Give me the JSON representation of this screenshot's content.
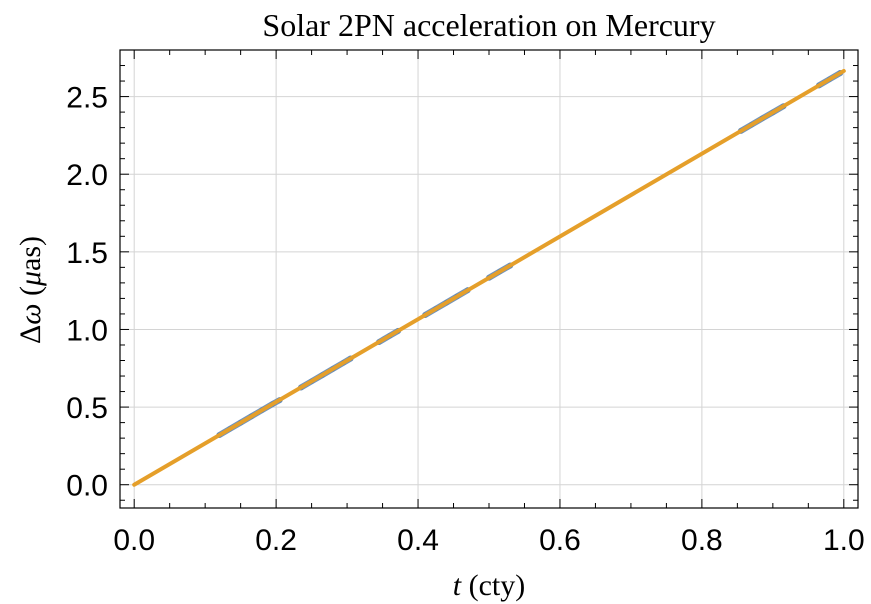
{
  "chart_data": {
    "type": "line",
    "title": "Solar 2PN acceleration on Mercury",
    "xlabel": {
      "var": "t",
      "unit": " (cty)"
    },
    "ylabel": {
      "prefix": "Δ",
      "var": "ω",
      "unit_open": " (",
      "unit_mu": "μ",
      "unit_rest": "as)"
    },
    "xlim": [
      -0.02,
      1.02
    ],
    "ylim": [
      -0.15,
      2.8
    ],
    "x_ticks": [
      0.0,
      0.2,
      0.4,
      0.6,
      0.8,
      1.0
    ],
    "x_tick_labels": [
      "0.0",
      "0.2",
      "0.4",
      "0.6",
      "0.8",
      "1.0"
    ],
    "y_ticks": [
      0.0,
      0.5,
      1.0,
      1.5,
      2.0,
      2.5
    ],
    "y_tick_labels": [
      "0.0",
      "0.5",
      "1.0",
      "1.5",
      "2.0",
      "2.5"
    ],
    "grid": true,
    "colors": {
      "fit": "#E59F2A",
      "data": "#5F87B7",
      "grid": "#d4d4d4"
    },
    "series": [
      {
        "role": "fit",
        "x": [
          0.0,
          1.0
        ],
        "y": [
          0.0,
          2.665
        ]
      },
      {
        "role": "data",
        "segments": [
          {
            "x": [
              0.12,
              0.135,
              0.15,
              0.165,
              0.18,
              0.195,
              0.205
            ],
            "y": [
              0.32,
              0.36,
              0.4,
              0.44,
              0.48,
              0.52,
              0.545
            ]
          },
          {
            "x": [
              0.235,
              0.25,
              0.265,
              0.28,
              0.295,
              0.305
            ],
            "y": [
              0.626,
              0.666,
              0.706,
              0.746,
              0.786,
              0.813
            ]
          },
          {
            "x": [
              0.345,
              0.36,
              0.372
            ],
            "y": [
              0.919,
              0.959,
              0.991
            ]
          },
          {
            "x": [
              0.41,
              0.425,
              0.44,
              0.455,
              0.47
            ],
            "y": [
              1.093,
              1.133,
              1.173,
              1.213,
              1.253
            ]
          },
          {
            "x": [
              0.5,
              0.515,
              0.53
            ],
            "y": [
              1.333,
              1.373,
              1.412
            ]
          },
          {
            "x": [
              0.855,
              0.87,
              0.885,
              0.9,
              0.915
            ],
            "y": [
              2.279,
              2.319,
              2.359,
              2.398,
              2.438
            ]
          },
          {
            "x": [
              0.965,
              0.98,
              0.995
            ],
            "y": [
              2.572,
              2.612,
              2.652
            ]
          }
        ]
      }
    ]
  }
}
